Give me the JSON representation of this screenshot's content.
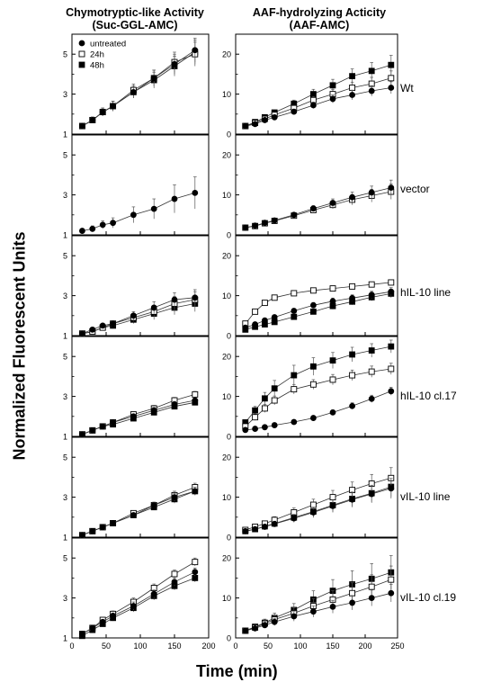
{
  "figure": {
    "left_title_1": "Chymotryptic-like Activity",
    "left_title_2": "(Suc-GGL-AMC)",
    "right_title_1": "AAF-hydrolyzing Acticity",
    "right_title_2": "(AAF-AMC)",
    "ylabel": "Normalized Fluorescent Units",
    "xlabel": "Time (min)",
    "legend": [
      "untreated",
      "24h",
      "48h"
    ],
    "row_labels": [
      "Wt",
      "vector",
      "hIL-10 line",
      "hIL-10 cl.17",
      "vIL-10 line",
      "vIL-10 cl.19"
    ]
  },
  "chart_data": {
    "type": "line",
    "legend_position": "top-left of first panel",
    "grid": false,
    "series_names": [
      "untreated",
      "24h",
      "48h"
    ],
    "markers": {
      "untreated": "filled-circle",
      "24h": "open-square",
      "48h": "filled-square"
    },
    "left_panels": {
      "xlim": [
        0,
        200
      ],
      "xticks": [
        0,
        50,
        100,
        150,
        200
      ],
      "ylim": [
        1,
        6
      ],
      "yticks": [
        1,
        3,
        5
      ],
      "x": [
        15,
        30,
        45,
        60,
        90,
        120,
        150,
        180
      ],
      "rows": [
        {
          "label": "Wt",
          "series": [
            {
              "name": "untreated",
              "values": [
                1.4,
                1.7,
                2.1,
                2.4,
                3.1,
                3.8,
                4.5,
                5.2
              ],
              "err": [
                0.1,
                0.15,
                0.2,
                0.25,
                0.3,
                0.4,
                0.5,
                0.6
              ]
            },
            {
              "name": "24h",
              "values": [
                1.4,
                1.7,
                2.1,
                2.4,
                3.2,
                3.8,
                4.6,
                5.0
              ],
              "err": [
                0.1,
                0.15,
                0.2,
                0.25,
                0.3,
                0.4,
                0.5,
                0.6
              ]
            },
            {
              "name": "48h",
              "values": [
                1.4,
                1.7,
                2.1,
                2.4,
                3.1,
                3.7,
                4.4,
                5.1
              ],
              "err": [
                0.1,
                0.15,
                0.2,
                0.25,
                0.3,
                0.4,
                0.5,
                0.6
              ]
            }
          ]
        },
        {
          "label": "vector",
          "series": [
            {
              "name": "untreated",
              "values": [
                1.2,
                1.3,
                1.5,
                1.6,
                2.0,
                2.3,
                2.8,
                3.1
              ],
              "err": [
                0.1,
                0.15,
                0.2,
                0.25,
                0.4,
                0.5,
                0.7,
                0.8
              ]
            }
          ]
        },
        {
          "label": "hIL-10 line",
          "series": [
            {
              "name": "untreated",
              "values": [
                1.1,
                1.3,
                1.5,
                1.6,
                2.0,
                2.4,
                2.8,
                2.9
              ],
              "err": [
                0.05,
                0.1,
                0.1,
                0.15,
                0.2,
                0.3,
                0.35,
                0.4
              ]
            },
            {
              "name": "24h",
              "values": [
                1.1,
                1.2,
                1.4,
                1.6,
                1.9,
                2.2,
                2.6,
                2.8
              ],
              "err": [
                0.05,
                0.1,
                0.1,
                0.15,
                0.2,
                0.3,
                0.35,
                0.4
              ]
            },
            {
              "name": "48h",
              "values": [
                1.1,
                1.2,
                1.4,
                1.5,
                1.8,
                2.1,
                2.4,
                2.6
              ],
              "err": [
                0.05,
                0.1,
                0.1,
                0.15,
                0.2,
                0.3,
                0.35,
                0.4
              ]
            }
          ]
        },
        {
          "label": "hIL-10 cl.17",
          "series": [
            {
              "name": "untreated",
              "values": [
                1.1,
                1.3,
                1.5,
                1.7,
                2.0,
                2.3,
                2.6,
                2.8
              ],
              "err": [
                0.05,
                0.05,
                0.1,
                0.1,
                0.1,
                0.15,
                0.15,
                0.15
              ]
            },
            {
              "name": "24h",
              "values": [
                1.1,
                1.3,
                1.5,
                1.7,
                2.1,
                2.4,
                2.8,
                3.1
              ],
              "err": [
                0.05,
                0.05,
                0.1,
                0.1,
                0.1,
                0.15,
                0.15,
                0.15
              ]
            },
            {
              "name": "48h",
              "values": [
                1.1,
                1.3,
                1.5,
                1.6,
                1.9,
                2.2,
                2.5,
                2.7
              ],
              "err": [
                0.05,
                0.05,
                0.1,
                0.1,
                0.1,
                0.15,
                0.15,
                0.15
              ]
            }
          ]
        },
        {
          "label": "vIL-10 line",
          "series": [
            {
              "name": "untreated",
              "values": [
                1.1,
                1.3,
                1.5,
                1.7,
                2.1,
                2.6,
                3.0,
                3.3
              ],
              "err": [
                0.05,
                0.05,
                0.1,
                0.1,
                0.1,
                0.15,
                0.2,
                0.2
              ]
            },
            {
              "name": "24h",
              "values": [
                1.1,
                1.3,
                1.5,
                1.7,
                2.2,
                2.6,
                3.1,
                3.5
              ],
              "err": [
                0.05,
                0.05,
                0.1,
                0.1,
                0.1,
                0.15,
                0.2,
                0.2
              ]
            },
            {
              "name": "48h",
              "values": [
                1.1,
                1.3,
                1.5,
                1.7,
                2.1,
                2.5,
                2.9,
                3.3
              ],
              "err": [
                0.05,
                0.05,
                0.1,
                0.1,
                0.1,
                0.15,
                0.2,
                0.2
              ]
            }
          ]
        },
        {
          "label": "vIL-10 cl.19",
          "series": [
            {
              "name": "untreated",
              "values": [
                1.2,
                1.5,
                1.8,
                2.1,
                2.6,
                3.2,
                3.8,
                4.3
              ],
              "err": [
                0.05,
                0.1,
                0.1,
                0.15,
                0.2,
                0.2,
                0.2,
                0.2
              ]
            },
            {
              "name": "24h",
              "values": [
                1.2,
                1.5,
                1.9,
                2.2,
                2.8,
                3.5,
                4.2,
                4.8
              ],
              "err": [
                0.05,
                0.1,
                0.1,
                0.15,
                0.2,
                0.2,
                0.2,
                0.2
              ]
            },
            {
              "name": "48h",
              "values": [
                1.1,
                1.4,
                1.7,
                2.0,
                2.5,
                3.1,
                3.6,
                4.0
              ],
              "err": [
                0.05,
                0.1,
                0.1,
                0.15,
                0.2,
                0.2,
                0.2,
                0.2
              ]
            }
          ]
        }
      ]
    },
    "right_panels": {
      "xlim": [
        0,
        250
      ],
      "xticks": [
        0,
        50,
        100,
        150,
        200,
        250
      ],
      "ylim": [
        0,
        25
      ],
      "yticks": [
        0,
        10,
        20
      ],
      "x": [
        15,
        30,
        45,
        60,
        90,
        120,
        150,
        180,
        210,
        240
      ],
      "rows": [
        {
          "label": "Wt",
          "series": [
            {
              "name": "untreated",
              "values": [
                2.0,
                2.5,
                3.5,
                4.2,
                5.6,
                7.2,
                8.8,
                9.8,
                10.8,
                11.6
              ],
              "err": [
                0.2,
                0.3,
                0.4,
                0.5,
                0.6,
                0.8,
                1.0,
                1.2,
                1.3,
                1.5
              ]
            },
            {
              "name": "24h",
              "values": [
                2.0,
                2.8,
                3.8,
                4.8,
                6.5,
                8.5,
                10.0,
                11.6,
                12.6,
                14.0
              ],
              "err": [
                0.2,
                0.3,
                0.4,
                0.5,
                0.7,
                0.9,
                1.2,
                1.4,
                1.6,
                1.8
              ]
            },
            {
              "name": "48h",
              "values": [
                2.0,
                3.0,
                4.2,
                5.4,
                7.6,
                10.0,
                12.2,
                14.5,
                15.8,
                17.3
              ],
              "err": [
                0.2,
                0.3,
                0.5,
                0.6,
                0.9,
                1.2,
                1.5,
                1.8,
                2.1,
                2.4
              ]
            }
          ]
        },
        {
          "label": "vector",
          "series": [
            {
              "name": "untreated",
              "values": [
                1.8,
                2.3,
                3.0,
                3.6,
                5.0,
                6.6,
                8.0,
                9.4,
                10.6,
                11.8
              ],
              "err": [
                0.2,
                0.2,
                0.3,
                0.4,
                0.5,
                0.7,
                1.0,
                1.3,
                1.6,
                1.9
              ]
            },
            {
              "name": "24h",
              "values": [
                1.8,
                2.2,
                2.9,
                3.5,
                4.8,
                6.2,
                7.5,
                8.8,
                9.8,
                10.8
              ],
              "err": [
                0.2,
                0.2,
                0.3,
                0.4,
                0.5,
                0.7,
                1.0,
                1.3,
                1.6,
                1.9
              ]
            }
          ]
        },
        {
          "label": "hIL-10 line",
          "series": [
            {
              "name": "untreated",
              "values": [
                2.0,
                2.8,
                3.8,
                4.6,
                6.2,
                7.6,
                8.6,
                9.4,
                10.2,
                11.0
              ],
              "err": [
                0.3,
                0.4,
                0.4,
                0.5,
                0.6,
                0.7,
                0.8,
                0.8,
                0.9,
                1.0
              ]
            },
            {
              "name": "24h",
              "values": [
                3.0,
                6.0,
                8.2,
                9.5,
                10.6,
                11.3,
                11.8,
                12.3,
                12.8,
                13.3
              ],
              "err": [
                0.4,
                0.5,
                0.5,
                0.5,
                0.5,
                0.5,
                0.5,
                0.5,
                0.5,
                0.6
              ]
            },
            {
              "name": "48h",
              "values": [
                1.5,
                2.2,
                2.8,
                3.4,
                4.7,
                6.0,
                7.4,
                8.5,
                9.6,
                10.5
              ],
              "err": [
                0.3,
                0.4,
                0.4,
                0.5,
                0.6,
                0.7,
                0.8,
                0.8,
                0.9,
                1.0
              ]
            }
          ]
        },
        {
          "label": "hIL-10 cl.17",
          "series": [
            {
              "name": "untreated",
              "values": [
                1.6,
                1.9,
                2.3,
                2.8,
                3.6,
                4.6,
                6.0,
                7.6,
                9.4,
                11.3
              ],
              "err": [
                0.2,
                0.2,
                0.3,
                0.3,
                0.4,
                0.5,
                0.6,
                0.8,
                0.9,
                1.0
              ]
            },
            {
              "name": "24h",
              "values": [
                2.5,
                4.8,
                7.0,
                9.0,
                11.8,
                13.0,
                14.2,
                15.3,
                16.2,
                16.9
              ],
              "err": [
                0.4,
                0.8,
                1.0,
                1.1,
                1.2,
                1.2,
                1.3,
                1.3,
                1.4,
                1.4
              ]
            },
            {
              "name": "48h",
              "values": [
                3.5,
                6.5,
                9.5,
                12.0,
                15.3,
                17.5,
                19.0,
                20.5,
                21.5,
                22.5
              ],
              "err": [
                0.5,
                1.0,
                1.5,
                2.0,
                2.5,
                2.2,
                2.0,
                1.8,
                1.7,
                1.6
              ]
            }
          ]
        },
        {
          "label": "vIL-10 line",
          "series": [
            {
              "name": "untreated",
              "values": [
                1.5,
                2.0,
                2.6,
                3.3,
                4.7,
                6.2,
                7.8,
                9.4,
                10.8,
                12.2
              ],
              "err": [
                0.3,
                0.4,
                0.5,
                0.7,
                1.0,
                1.3,
                1.6,
                1.9,
                2.2,
                2.5
              ]
            },
            {
              "name": "24h",
              "values": [
                1.8,
                2.6,
                3.4,
                4.3,
                6.2,
                8.1,
                10.0,
                11.8,
                13.4,
                14.8
              ],
              "err": [
                0.3,
                0.4,
                0.6,
                0.8,
                1.1,
                1.4,
                1.7,
                2.0,
                2.3,
                2.6
              ]
            },
            {
              "name": "48h",
              "values": [
                1.5,
                2.0,
                2.7,
                3.4,
                4.9,
                6.4,
                8.0,
                9.6,
                11.0,
                12.6
              ],
              "err": [
                0.3,
                0.4,
                0.5,
                0.7,
                1.0,
                1.3,
                1.6,
                1.9,
                2.2,
                2.5
              ]
            }
          ]
        },
        {
          "label": "vIL-10 cl.19",
          "series": [
            {
              "name": "untreated",
              "values": [
                1.8,
                2.4,
                3.2,
                4.0,
                5.4,
                6.6,
                7.8,
                8.8,
                10.0,
                11.2
              ],
              "err": [
                0.3,
                0.5,
                0.7,
                0.9,
                1.2,
                1.4,
                1.6,
                1.8,
                2.0,
                2.2
              ]
            },
            {
              "name": "24h",
              "values": [
                1.8,
                2.6,
                3.6,
                4.6,
                6.2,
                8.0,
                9.6,
                11.2,
                12.8,
                14.6
              ],
              "err": [
                0.3,
                0.5,
                0.8,
                1.0,
                1.4,
                1.8,
                2.2,
                2.6,
                3.0,
                3.4
              ]
            },
            {
              "name": "48h",
              "values": [
                1.8,
                2.8,
                3.8,
                5.0,
                7.0,
                9.6,
                11.8,
                13.4,
                14.8,
                16.4
              ],
              "err": [
                0.3,
                0.6,
                0.9,
                1.2,
                1.6,
                2.2,
                2.8,
                3.4,
                3.8,
                4.2
              ]
            }
          ]
        }
      ]
    }
  }
}
